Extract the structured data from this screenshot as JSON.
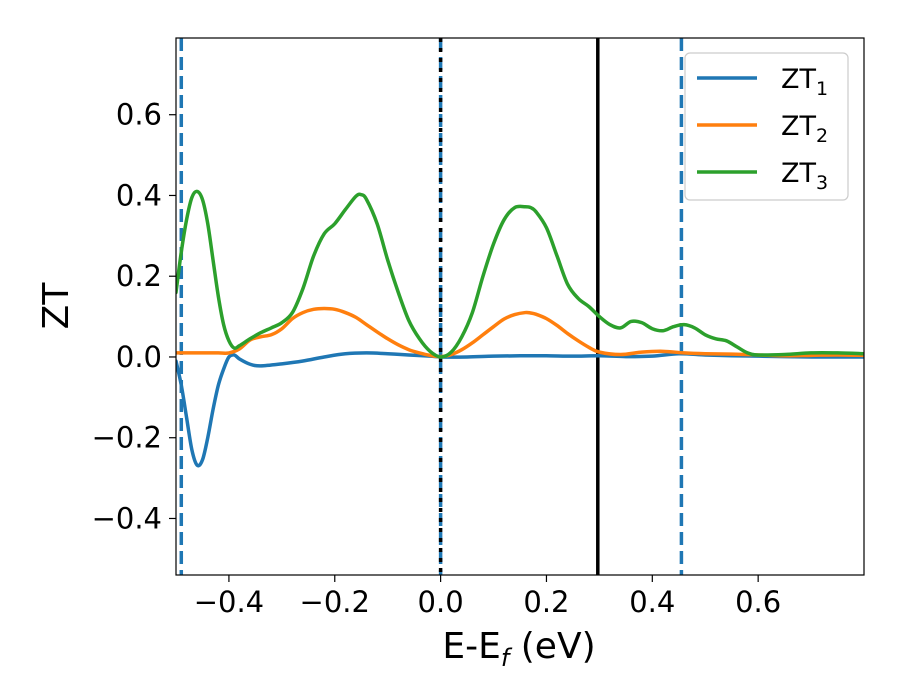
{
  "chart_data": {
    "type": "line",
    "xlabel": "E-E_f (eV)",
    "ylabel": "ZT",
    "xlim": [
      -0.5,
      0.8
    ],
    "ylim": [
      -0.54,
      0.79
    ],
    "xticks": [
      -0.4,
      -0.2,
      0.0,
      0.2,
      0.4,
      0.6
    ],
    "xtick_labels": [
      "−0.4",
      "−0.2",
      "0.0",
      "0.2",
      "0.4",
      "0.6"
    ],
    "yticks": [
      -0.4,
      -0.2,
      0.0,
      0.2,
      0.4,
      0.6
    ],
    "ytick_labels": [
      "−0.4",
      "−0.2",
      "0.0",
      "0.2",
      "0.4",
      "0.6"
    ],
    "grid": false,
    "legend_position": "top-right",
    "vlines": [
      {
        "x": -0.49,
        "style": "dashed",
        "color": "#1f77b4"
      },
      {
        "x": 0.0,
        "style": "dashed",
        "color": "#1f77b4"
      },
      {
        "x": 0.0,
        "style": "dotted",
        "color": "#000000"
      },
      {
        "x": 0.297,
        "style": "solid",
        "color": "#000000"
      },
      {
        "x": 0.455,
        "style": "dashed",
        "color": "#1f77b4"
      }
    ],
    "series": [
      {
        "name": "ZT1",
        "legend_main": "ZT",
        "legend_sub": "1",
        "color": "#1f77b4",
        "x": [
          -0.5,
          -0.49,
          -0.48,
          -0.47,
          -0.46,
          -0.45,
          -0.44,
          -0.43,
          -0.42,
          -0.41,
          -0.4,
          -0.39,
          -0.38,
          -0.36,
          -0.34,
          -0.3,
          -0.26,
          -0.22,
          -0.18,
          -0.14,
          -0.1,
          -0.06,
          -0.02,
          0.0,
          0.05,
          0.1,
          0.15,
          0.2,
          0.25,
          0.3,
          0.35,
          0.4,
          0.45,
          0.5,
          0.55,
          0.6,
          0.65,
          0.7,
          0.75,
          0.8
        ],
        "y": [
          -0.01,
          -0.07,
          -0.15,
          -0.23,
          -0.268,
          -0.255,
          -0.2,
          -0.13,
          -0.07,
          -0.03,
          0.0,
          0.005,
          -0.005,
          -0.018,
          -0.022,
          -0.017,
          -0.01,
          0.0,
          0.008,
          0.01,
          0.008,
          0.005,
          0.002,
          0.0,
          0.0,
          0.002,
          0.003,
          0.003,
          0.002,
          0.003,
          0.001,
          0.002,
          0.008,
          0.005,
          0.003,
          0.002,
          0.001,
          0.0,
          0.0,
          0.0
        ]
      },
      {
        "name": "ZT2",
        "legend_main": "ZT",
        "legend_sub": "2",
        "color": "#ff7f0e",
        "x": [
          -0.5,
          -0.46,
          -0.42,
          -0.4,
          -0.38,
          -0.36,
          -0.34,
          -0.32,
          -0.3,
          -0.28,
          -0.26,
          -0.24,
          -0.22,
          -0.2,
          -0.18,
          -0.16,
          -0.14,
          -0.12,
          -0.1,
          -0.08,
          -0.06,
          -0.04,
          -0.02,
          0.0,
          0.02,
          0.04,
          0.06,
          0.08,
          0.1,
          0.12,
          0.14,
          0.16,
          0.17,
          0.18,
          0.2,
          0.22,
          0.24,
          0.26,
          0.28,
          0.3,
          0.34,
          0.38,
          0.42,
          0.46,
          0.5,
          0.55,
          0.6,
          0.65,
          0.7,
          0.75,
          0.8
        ],
        "y": [
          0.01,
          0.01,
          0.01,
          0.01,
          0.02,
          0.042,
          0.05,
          0.055,
          0.07,
          0.095,
          0.11,
          0.118,
          0.12,
          0.118,
          0.11,
          0.098,
          0.08,
          0.062,
          0.045,
          0.03,
          0.018,
          0.01,
          0.004,
          0.001,
          0.006,
          0.018,
          0.035,
          0.055,
          0.075,
          0.094,
          0.105,
          0.11,
          0.109,
          0.106,
          0.095,
          0.078,
          0.058,
          0.04,
          0.024,
          0.012,
          0.006,
          0.012,
          0.014,
          0.01,
          0.008,
          0.007,
          0.005,
          0.003,
          0.004,
          0.005,
          0.004
        ]
      },
      {
        "name": "ZT3",
        "legend_main": "ZT",
        "legend_sub": "3",
        "color": "#2ca02c",
        "x": [
          -0.5,
          -0.49,
          -0.48,
          -0.47,
          -0.46,
          -0.45,
          -0.44,
          -0.43,
          -0.42,
          -0.41,
          -0.4,
          -0.39,
          -0.38,
          -0.36,
          -0.34,
          -0.32,
          -0.3,
          -0.28,
          -0.26,
          -0.24,
          -0.22,
          -0.2,
          -0.18,
          -0.16,
          -0.15,
          -0.14,
          -0.12,
          -0.1,
          -0.08,
          -0.06,
          -0.04,
          -0.02,
          0.0,
          0.02,
          0.04,
          0.06,
          0.08,
          0.1,
          0.12,
          0.14,
          0.16,
          0.17,
          0.18,
          0.2,
          0.22,
          0.24,
          0.26,
          0.28,
          0.3,
          0.32,
          0.34,
          0.36,
          0.38,
          0.4,
          0.42,
          0.44,
          0.46,
          0.48,
          0.5,
          0.52,
          0.54,
          0.56,
          0.58,
          0.6,
          0.65,
          0.7,
          0.75,
          0.8
        ],
        "y": [
          0.16,
          0.26,
          0.34,
          0.395,
          0.41,
          0.39,
          0.33,
          0.24,
          0.15,
          0.08,
          0.04,
          0.022,
          0.028,
          0.045,
          0.06,
          0.072,
          0.085,
          0.11,
          0.17,
          0.25,
          0.305,
          0.33,
          0.365,
          0.398,
          0.402,
          0.39,
          0.33,
          0.24,
          0.16,
          0.09,
          0.045,
          0.014,
          0.0,
          0.012,
          0.05,
          0.11,
          0.2,
          0.28,
          0.34,
          0.37,
          0.372,
          0.37,
          0.36,
          0.32,
          0.25,
          0.18,
          0.145,
          0.125,
          0.1,
          0.08,
          0.072,
          0.088,
          0.085,
          0.07,
          0.065,
          0.075,
          0.08,
          0.072,
          0.055,
          0.045,
          0.04,
          0.025,
          0.01,
          0.005,
          0.006,
          0.01,
          0.01,
          0.008
        ]
      }
    ]
  }
}
